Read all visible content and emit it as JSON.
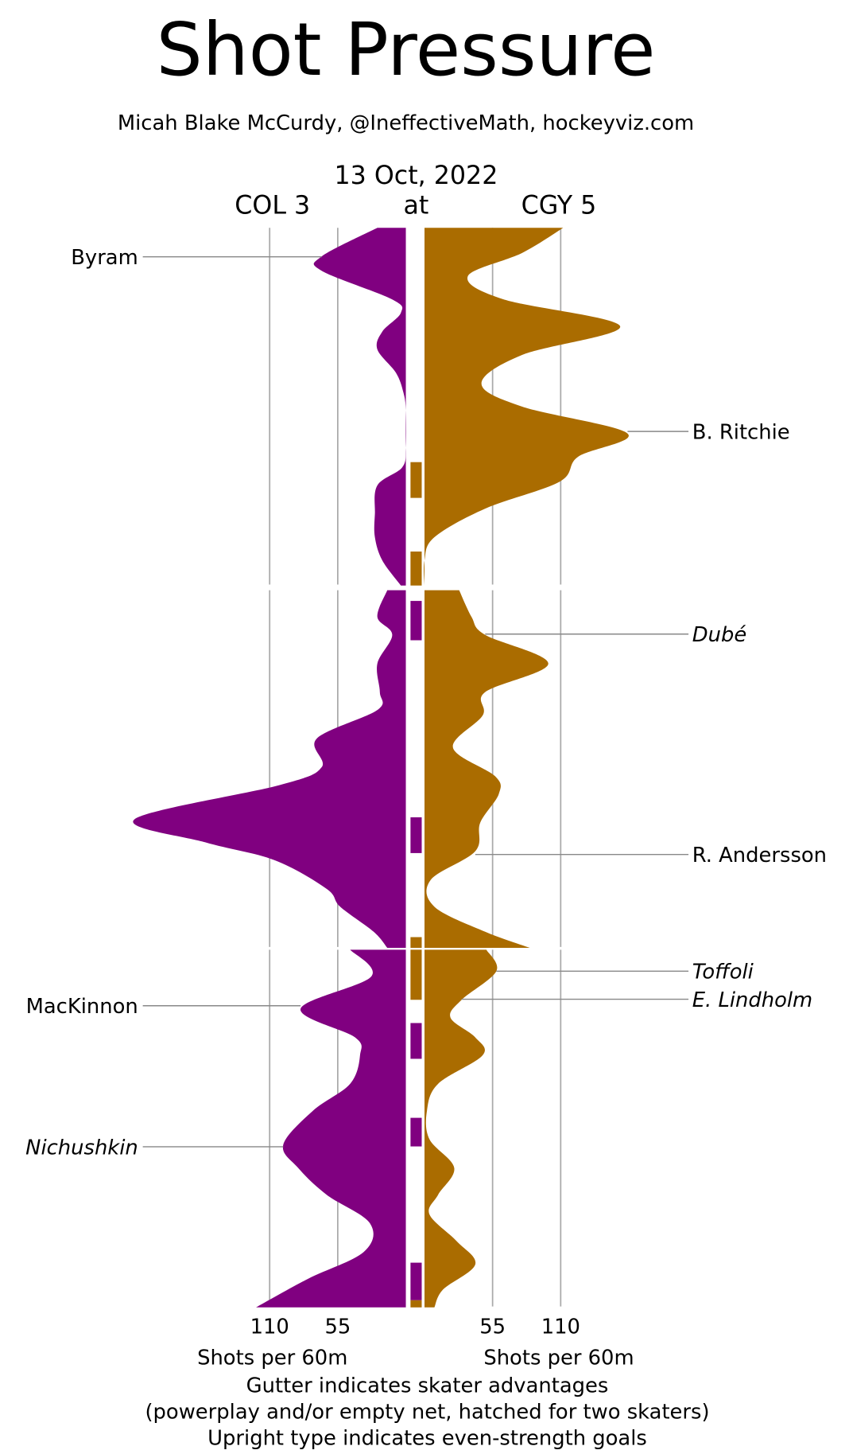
{
  "chart_data": {
    "type": "area",
    "title": "Shot Pressure",
    "subtitle": "Micah Blake McCurdy, @IneffectiveMath, hockeyviz.com",
    "date": "13 Oct, 2022",
    "away": {
      "label": "COL 3",
      "color": "#800080"
    },
    "at_label": "at",
    "home": {
      "label": "CGY 5",
      "color": "#AA6C00"
    },
    "xlabel_left": "Shots per 60m",
    "xlabel_right": "Shots per 60m",
    "ticks_left": [
      "110",
      "55"
    ],
    "ticks_right": [
      "55",
      "110"
    ],
    "tick_values": [
      110,
      55
    ],
    "footnotes": [
      "Gutter indicates skater advantages",
      "(powerplay and/or empty net, hatched for two skaters)",
      "Upright type indicates even-strength goals"
    ],
    "period_minutes": 20,
    "periods": [
      {
        "away": [
          [
            0,
            23
          ],
          [
            1.6,
            68
          ],
          [
            2.4,
            68
          ],
          [
            4.0,
            11
          ],
          [
            4.75,
            4
          ],
          [
            5.8,
            19
          ],
          [
            6.8,
            23
          ],
          [
            8.1,
            8
          ],
          [
            9.2,
            2
          ],
          [
            10.2,
            0
          ],
          [
            12.3,
            0
          ],
          [
            13.4,
            3
          ],
          [
            14.4,
            23
          ],
          [
            16.0,
            25
          ],
          [
            17.3,
            25
          ],
          [
            18.6,
            19
          ],
          [
            20,
            4
          ]
        ],
        "home": [
          [
            0,
            112
          ],
          [
            1.4,
            79
          ],
          [
            2.7,
            35
          ],
          [
            4.0,
            64
          ],
          [
            5.5,
            158
          ],
          [
            7.1,
            79
          ],
          [
            8.7,
            46
          ],
          [
            10.0,
            79
          ],
          [
            11.5,
            164
          ],
          [
            12.8,
            124
          ],
          [
            14.2,
            109
          ],
          [
            15.7,
            49
          ],
          [
            17.3,
            8
          ],
          [
            18.6,
            0
          ],
          [
            20,
            0
          ]
        ],
        "gutter": [
          {
            "team": "home",
            "start": 13.1,
            "end": 15.1
          },
          {
            "team": "home",
            "start": 18.1,
            "end": 20
          }
        ]
      },
      {
        "away": [
          [
            0,
            15
          ],
          [
            1.5,
            23
          ],
          [
            2.5,
            11
          ],
          [
            4.1,
            23
          ],
          [
            5.7,
            21
          ],
          [
            6.7,
            23
          ],
          [
            8.3,
            72
          ],
          [
            9.9,
            68
          ],
          [
            10.9,
            102
          ],
          [
            12.8,
            219
          ],
          [
            14.1,
            162
          ],
          [
            15.1,
            106
          ],
          [
            16.7,
            64
          ],
          [
            17.7,
            53
          ],
          [
            19.1,
            26
          ],
          [
            20,
            15
          ]
        ],
        "home": [
          [
            0,
            28
          ],
          [
            1.5,
            38
          ],
          [
            2.5,
            49
          ],
          [
            4.1,
            100
          ],
          [
            5.7,
            49
          ],
          [
            7.0,
            47
          ],
          [
            8.8,
            23
          ],
          [
            10.4,
            57
          ],
          [
            11.4,
            60
          ],
          [
            13.0,
            45
          ],
          [
            14.6,
            41
          ],
          [
            16.2,
            5
          ],
          [
            17.7,
            8
          ],
          [
            19.1,
            49
          ],
          [
            20,
            85
          ]
        ],
        "gutter": [
          {
            "team": "away",
            "start": 0.6,
            "end": 2.8
          },
          {
            "team": "away",
            "start": 12.7,
            "end": 14.7
          },
          {
            "team": "home",
            "start": 19.4,
            "end": 20
          }
        ]
      },
      {
        "away": [
          [
            0,
            45
          ],
          [
            1.5,
            28
          ],
          [
            3.3,
            85
          ],
          [
            4.9,
            41
          ],
          [
            5.9,
            37
          ],
          [
            7.5,
            45
          ],
          [
            9.0,
            75
          ],
          [
            10.9,
            99
          ],
          [
            12.2,
            87
          ],
          [
            13.7,
            64
          ],
          [
            15.3,
            29
          ],
          [
            16.9,
            34
          ],
          [
            18.4,
            79
          ],
          [
            20,
            121
          ]
        ],
        "home": [
          [
            0,
            50
          ],
          [
            1.2,
            58
          ],
          [
            2.8,
            30
          ],
          [
            3.8,
            21
          ],
          [
            4.9,
            41
          ],
          [
            5.9,
            47
          ],
          [
            7.5,
            11
          ],
          [
            9.0,
            2
          ],
          [
            10.6,
            4
          ],
          [
            12.2,
            24
          ],
          [
            13.7,
            11
          ],
          [
            14.8,
            4
          ],
          [
            16.3,
            26
          ],
          [
            17.6,
            41
          ],
          [
            19.0,
            15
          ],
          [
            20,
            8
          ]
        ],
        "gutter": [
          {
            "team": "home",
            "start": 0,
            "end": 2.8
          },
          {
            "team": "away",
            "start": 4.1,
            "end": 6.1
          },
          {
            "team": "away",
            "start": 9.4,
            "end": 11.0
          },
          {
            "team": "away",
            "start": 17.5,
            "end": 19.6
          },
          {
            "team": "home",
            "start": 19.6,
            "end": 20
          }
        ]
      }
    ],
    "goals": [
      {
        "player": "Byram",
        "team": "away",
        "period": 1,
        "minute": 1.6,
        "even_strength": true,
        "value": 68
      },
      {
        "player": "B. Ritchie",
        "team": "home",
        "period": 1,
        "minute": 11.3,
        "even_strength": true,
        "value": 164
      },
      {
        "player": "Dubé",
        "team": "home",
        "period": 2,
        "minute": 2.5,
        "even_strength": false,
        "value": 49
      },
      {
        "player": "R. Andersson",
        "team": "home",
        "period": 2,
        "minute": 14.8,
        "even_strength": true,
        "value": 41
      },
      {
        "player": "Toffoli",
        "team": "home",
        "period": 3,
        "minute": 1.2,
        "even_strength": false,
        "value": 58
      },
      {
        "player": "E. Lindholm",
        "team": "home",
        "period": 3,
        "minute": 2.8,
        "even_strength": false,
        "value": 30
      },
      {
        "player": "MacKinnon",
        "team": "away",
        "period": 3,
        "minute": 3.1,
        "even_strength": true,
        "value": 85
      },
      {
        "player": "Nichushkin",
        "team": "away",
        "period": 3,
        "minute": 11.0,
        "even_strength": false,
        "value": 99
      }
    ]
  }
}
